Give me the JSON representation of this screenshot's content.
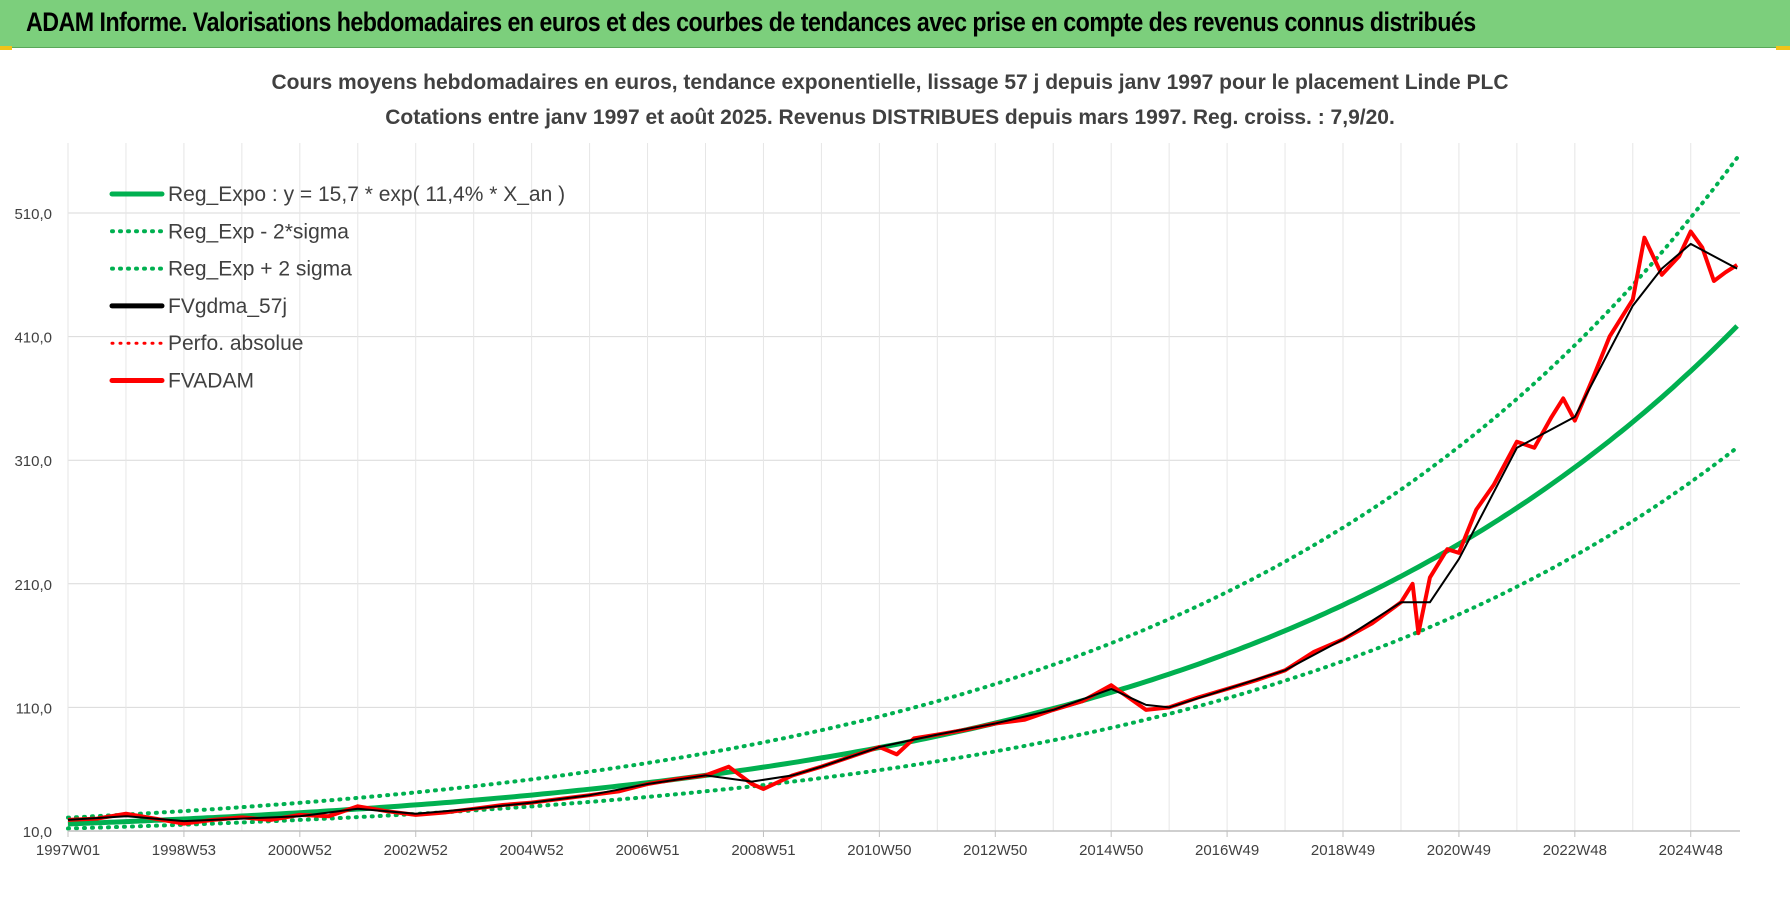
{
  "banner": {
    "title": "ADAM Informe. Valorisations hebdomadaires en euros et des courbes de tendances avec prise en compte des revenus connus distribués"
  },
  "colors": {
    "banner_bg": "#7ccf7c",
    "reg_green": "#00b050",
    "fvgdma_black": "#000000",
    "fvadam_red": "#ff0000",
    "grid": "#d9d9d9",
    "text": "#404040"
  },
  "chart_data": {
    "type": "line",
    "title_line1": "Cours moyens hebdomadaires en euros, tendance exponentielle, lissage 57 j depuis janv 1997 pour le placement Linde PLC",
    "title_line2": "Cotations entre janv 1997 et août 2025. Revenus DISTRIBUES depuis mars 1997. Reg. croiss. : 7,9/20.",
    "x_ticks": [
      "1997W01",
      "1998W53",
      "2000W52",
      "2002W52",
      "2004W52",
      "2006W51",
      "2008W51",
      "2010W50",
      "2012W50",
      "2014W50",
      "2016W49",
      "2018W49",
      "2020W49",
      "2022W48",
      "2024W48"
    ],
    "x_tick_years": [
      1997.0,
      1999.0,
      2001.0,
      2003.0,
      2005.0,
      2007.0,
      2009.0,
      2011.0,
      2013.0,
      2015.0,
      2017.0,
      2019.0,
      2021.0,
      2023.0,
      2025.0
    ],
    "x_range": [
      1997.0,
      2025.85
    ],
    "y_ticks": [
      "10,0",
      "110,0",
      "210,0",
      "310,0",
      "410,0",
      "510,0"
    ],
    "y_tick_values": [
      10,
      110,
      210,
      310,
      410,
      510
    ],
    "ylim": [
      10,
      510
    ],
    "grid": true,
    "legend_position": "top-left",
    "legend": [
      {
        "label": "Reg_Expo : y = 15,7 * exp( 11,4% *  X_an )",
        "style": "solid",
        "color": "#00b050"
      },
      {
        "label": "Reg_Exp - 2*sigma",
        "style": "dotted",
        "color": "#00b050"
      },
      {
        "label": "Reg_Exp + 2 sigma",
        "style": "dotted",
        "color": "#00b050"
      },
      {
        "label": "FVgdma_57j",
        "style": "solid",
        "color": "#000000"
      },
      {
        "label": "Perfo. absolue",
        "style": "dotted",
        "color": "#ff0000"
      },
      {
        "label": "FVADAM",
        "style": "solid",
        "color": "#ff0000"
      }
    ],
    "regression": {
      "a": 15.7,
      "rate": 0.114,
      "minus_2sigma_factor": 0.765,
      "plus_2sigma_factor": 1.325
    },
    "series": [
      {
        "name": "FVADAM",
        "x": [
          1997.0,
          1997.5,
          1998.0,
          1998.5,
          1999.0,
          1999.5,
          2000.0,
          2000.5,
          2001.0,
          2001.5,
          2002.0,
          2002.5,
          2003.0,
          2003.5,
          2004.0,
          2004.5,
          2005.0,
          2005.5,
          2006.0,
          2006.5,
          2007.0,
          2007.5,
          2008.0,
          2008.4,
          2008.8,
          2009.0,
          2009.5,
          2010.0,
          2010.5,
          2011.0,
          2011.3,
          2011.6,
          2012.0,
          2012.5,
          2013.0,
          2013.5,
          2014.0,
          2014.5,
          2015.0,
          2015.3,
          2015.6,
          2016.0,
          2016.5,
          2017.0,
          2017.5,
          2018.0,
          2018.5,
          2019.0,
          2019.5,
          2020.0,
          2020.2,
          2020.3,
          2020.5,
          2020.8,
          2021.0,
          2021.3,
          2021.6,
          2022.0,
          2022.3,
          2022.6,
          2022.8,
          2023.0,
          2023.3,
          2023.6,
          2024.0,
          2024.2,
          2024.5,
          2024.8,
          2025.0,
          2025.2,
          2025.4,
          2025.6,
          2025.8
        ],
        "values": [
          19,
          20,
          24,
          20,
          16,
          19,
          21,
          19,
          23,
          22,
          30,
          26,
          23,
          25,
          28,
          31,
          33,
          36,
          39,
          42,
          48,
          52,
          55,
          62,
          48,
          44,
          55,
          62,
          70,
          78,
          72,
          85,
          88,
          92,
          97,
          100,
          108,
          115,
          128,
          118,
          108,
          110,
          118,
          125,
          132,
          140,
          155,
          165,
          178,
          195,
          210,
          170,
          215,
          238,
          235,
          270,
          290,
          325,
          320,
          345,
          360,
          342,
          375,
          410,
          440,
          490,
          460,
          475,
          495,
          482,
          455,
          462,
          468
        ]
      },
      {
        "name": "FVgdma_57j",
        "x": [
          1997.0,
          1998.0,
          1999.0,
          2000.0,
          2001.0,
          2002.0,
          2003.0,
          2004.0,
          2005.0,
          2006.0,
          2007.0,
          2008.0,
          2008.8,
          2009.5,
          2010.0,
          2011.0,
          2012.0,
          2013.0,
          2014.0,
          2015.0,
          2015.6,
          2016.0,
          2017.0,
          2018.0,
          2019.0,
          2020.0,
          2020.5,
          2021.0,
          2022.0,
          2023.0,
          2024.0,
          2024.5,
          2025.0,
          2025.8
        ],
        "values": [
          19,
          22,
          18,
          20,
          22,
          28,
          24,
          28,
          33,
          39,
          48,
          55,
          50,
          55,
          62,
          78,
          88,
          97,
          108,
          125,
          112,
          110,
          125,
          140,
          165,
          195,
          195,
          230,
          320,
          345,
          435,
          465,
          485,
          465
        ]
      }
    ]
  }
}
